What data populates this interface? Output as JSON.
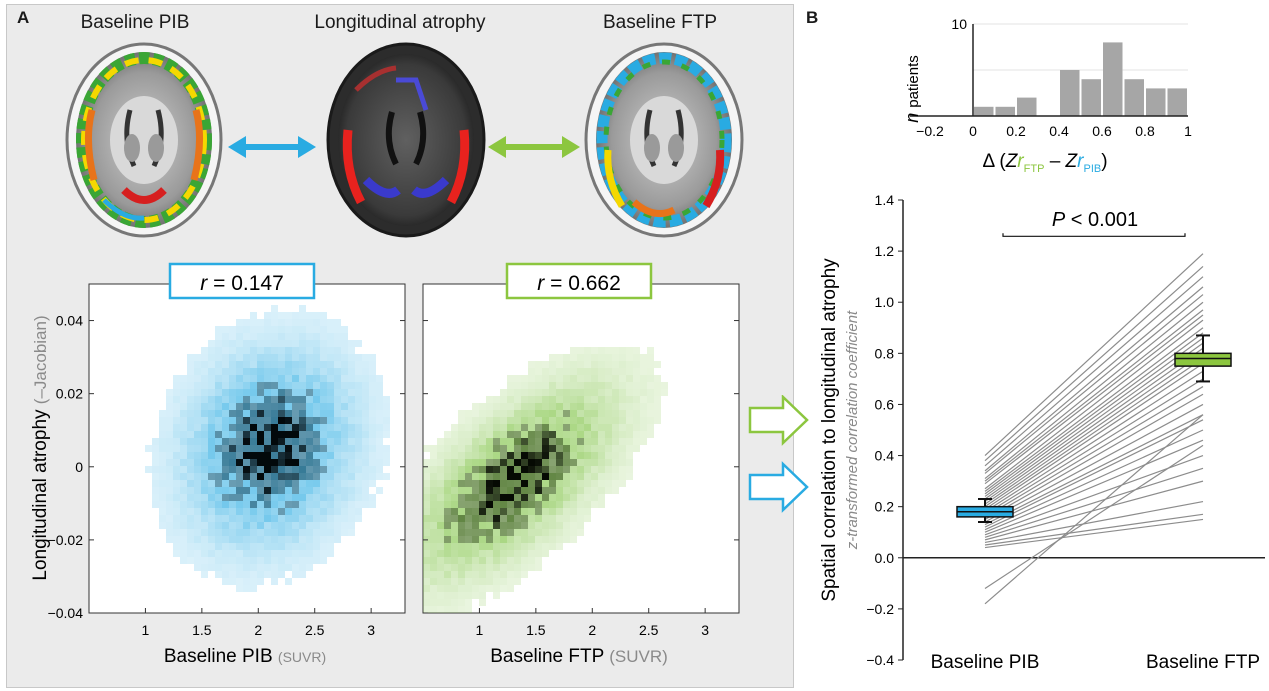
{
  "panel_a": {
    "letter": "A",
    "brain_titles": [
      "Baseline PIB",
      "Longitudinal atrophy",
      "Baseline FTP"
    ],
    "arrow_colors": {
      "pib": "#29abe2",
      "ftp": "#8cc63f"
    }
  },
  "panel_b": {
    "letter": "B"
  },
  "colors": {
    "pib": "#29abe2",
    "ftp": "#8cc63f",
    "gray": "#a6a6a6"
  },
  "chart_data": [
    {
      "type": "heatmap",
      "id": "pib_scatter",
      "correlation_label": "r = 0.147",
      "r_prefix": "r",
      "r_value": "= 0.147",
      "xlabel": "Baseline PIB",
      "xlabel_unit": "(SUVR)",
      "ylabel": "Longitudinal atrophy",
      "ylabel_unit": "(–Jacobian)",
      "xlim": [
        0.5,
        3.3
      ],
      "ylim": [
        -0.04,
        0.05
      ],
      "xticks": [
        1,
        1.5,
        2,
        2.5,
        3
      ],
      "xtick_labels": [
        "1",
        "1.5",
        "2",
        "2.5",
        "3"
      ],
      "yticks": [
        -0.04,
        -0.02,
        0,
        0.02,
        0.04
      ],
      "ytick_labels": [
        "−0.04",
        "−0.02",
        "0",
        "0.02",
        "0.04"
      ],
      "color": "#29abe2",
      "density_peak": [
        2.1,
        0.005
      ],
      "spread": [
        0.45,
        0.016
      ],
      "correlation": 0.147
    },
    {
      "type": "heatmap",
      "id": "ftp_scatter",
      "correlation_label": "r = 0.662",
      "r_prefix": "r",
      "r_value": "= 0.662",
      "xlabel": "Baseline FTP",
      "xlabel_unit": "(SUVR)",
      "xlim": [
        0.5,
        3.3
      ],
      "ylim": [
        -0.04,
        0.05
      ],
      "xticks": [
        1,
        1.5,
        2,
        2.5,
        3
      ],
      "xtick_labels": [
        "1",
        "1.5",
        "2",
        "2.5",
        "3"
      ],
      "yticks": [
        -0.04,
        -0.02,
        0,
        0.02,
        0.04
      ],
      "color": "#7dc242",
      "density_peak": [
        1.3,
        -0.004
      ],
      "spread": [
        0.55,
        0.016
      ],
      "correlation": 0.662
    },
    {
      "type": "bar",
      "id": "histogram",
      "ylabel_prefix": "n",
      "ylabel_sub": "patients",
      "xlabel_delta": "Δ (",
      "xlabel_z": "Z",
      "xlabel_r": "r",
      "xlabel_ftp": "FTP",
      "xlabel_minus": "–",
      "xlabel_pib": "PIB",
      "xlabel_close": ")",
      "bin_width": 0.1,
      "bin_starts": [
        0.0,
        0.1,
        0.2,
        0.3,
        0.4,
        0.5,
        0.6,
        0.7,
        0.8,
        0.9
      ],
      "values": [
        1,
        1,
        2,
        0,
        5,
        4,
        8,
        4,
        3,
        3
      ],
      "xlim": [
        -0.2,
        1.0
      ],
      "ylim": [
        0,
        10
      ],
      "xticks": [
        -0.2,
        0,
        0.2,
        0.4,
        0.6,
        0.8,
        1
      ],
      "xtick_labels": [
        "−0.2",
        "0",
        "0.2",
        "0.4",
        "0.6",
        "0.8",
        "1"
      ],
      "yticks": [
        10
      ],
      "ytick_labels": [
        "10"
      ]
    },
    {
      "type": "line",
      "id": "paired_lines",
      "categories": [
        "Baseline PIB",
        "Baseline FTP"
      ],
      "ylabel": "Spatial correlation to longitudinal atrophy",
      "ylabel_sub": "z-transformed correlation coefficient",
      "significance": "P < 0.001",
      "sig_p": "P",
      "sig_rest": "< 0.001",
      "ylim": [
        -0.4,
        1.4
      ],
      "yticks": [
        -0.4,
        -0.2,
        0.0,
        0.2,
        0.4,
        0.6,
        0.8,
        1.0,
        1.2,
        1.4
      ],
      "ytick_labels": [
        "−0.4",
        "−0.2",
        "0.0",
        "0.2",
        "0.4",
        "0.6",
        "0.8",
        "1.0",
        "1.2",
        "1.4"
      ],
      "pairs": [
        [
          0.4,
          1.19
        ],
        [
          0.38,
          1.14
        ],
        [
          0.36,
          1.1
        ],
        [
          0.34,
          1.06
        ],
        [
          0.33,
          1.03
        ],
        [
          0.31,
          1.0
        ],
        [
          0.3,
          0.97
        ],
        [
          0.29,
          0.95
        ],
        [
          0.27,
          0.93
        ],
        [
          0.26,
          0.9
        ],
        [
          0.25,
          0.88
        ],
        [
          0.24,
          0.86
        ],
        [
          0.23,
          0.84
        ],
        [
          0.22,
          0.82
        ],
        [
          0.21,
          0.8
        ],
        [
          0.2,
          0.78
        ],
        [
          0.19,
          0.76
        ],
        [
          0.18,
          0.73
        ],
        [
          0.17,
          0.7
        ],
        [
          0.16,
          0.67
        ],
        [
          0.15,
          0.64
        ],
        [
          0.14,
          0.6
        ],
        [
          0.13,
          0.56
        ],
        [
          0.12,
          0.54
        ],
        [
          0.11,
          0.5
        ],
        [
          0.1,
          0.46
        ],
        [
          0.09,
          0.4
        ],
        [
          0.08,
          0.35
        ],
        [
          0.07,
          0.3
        ],
        [
          0.06,
          0.22
        ],
        [
          0.05,
          0.17
        ],
        [
          0.04,
          0.15
        ],
        [
          -0.12,
          0.44
        ],
        [
          -0.18,
          0.56
        ]
      ],
      "box_pib": {
        "mean": 0.18,
        "se_low": 0.16,
        "se_high": 0.2,
        "whisker_low": 0.14,
        "whisker_high": 0.23
      },
      "box_ftp": {
        "mean": 0.78,
        "se_low": 0.75,
        "se_high": 0.8,
        "whisker_low": 0.69,
        "whisker_high": 0.87
      }
    }
  ]
}
